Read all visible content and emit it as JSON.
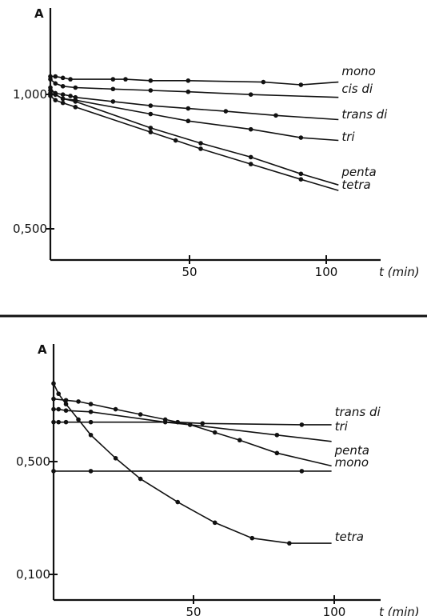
{
  "chart_data": [
    {
      "type": "line",
      "ylabel": "A",
      "xlabel": "t (min)",
      "x_ticks": [
        "50",
        "100"
      ],
      "y_ticks": [
        "1,000",
        "0,500"
      ],
      "xlim": [
        0,
        135
      ],
      "ylim": [
        0.4,
        1.22
      ],
      "series": [
        {
          "name": "mono",
          "x": [
            0,
            2,
            5,
            8,
            25,
            30,
            40,
            55,
            85,
            100,
            115
          ],
          "y": [
            1.06,
            1.06,
            1.055,
            1.05,
            1.05,
            1.05,
            1.045,
            1.045,
            1.04,
            1.03,
            1.04
          ]
        },
        {
          "name": "cis di",
          "x": [
            0,
            2,
            5,
            10,
            25,
            40,
            55,
            80,
            115
          ],
          "y": [
            1.05,
            1.035,
            1.025,
            1.02,
            1.015,
            1.01,
            1.005,
            0.995,
            0.985
          ]
        },
        {
          "name": "trans di",
          "x": [
            0,
            2,
            5,
            8,
            10,
            25,
            40,
            55,
            70,
            90,
            115
          ],
          "y": [
            1.01,
            1.0,
            0.995,
            0.99,
            0.985,
            0.97,
            0.955,
            0.945,
            0.935,
            0.92,
            0.905
          ]
        },
        {
          "name": "tri",
          "x": [
            0,
            2,
            5,
            10,
            40,
            55,
            80,
            100,
            115
          ],
          "y": [
            1.0,
            0.995,
            0.98,
            0.975,
            0.925,
            0.9,
            0.87,
            0.84,
            0.83
          ]
        },
        {
          "name": "penta",
          "x": [
            0,
            2,
            5,
            10,
            40,
            60,
            80,
            100,
            115
          ],
          "y": [
            1.02,
            0.995,
            0.98,
            0.97,
            0.875,
            0.82,
            0.77,
            0.71,
            0.67
          ]
        },
        {
          "name": "tetra",
          "x": [
            0,
            2,
            5,
            10,
            40,
            50,
            60,
            80,
            100,
            115
          ],
          "y": [
            0.99,
            0.975,
            0.965,
            0.95,
            0.86,
            0.83,
            0.8,
            0.745,
            0.69,
            0.65
          ]
        }
      ]
    },
    {
      "type": "line",
      "ylabel": "A",
      "xlabel": "t (min)",
      "x_ticks": [
        "50",
        "100"
      ],
      "y_ticks": [
        "0,500",
        "0,100"
      ],
      "xlim": [
        0,
        135
      ],
      "ylim": [
        0.0,
        0.9
      ],
      "series": [
        {
          "name": "trans di",
          "x": [
            0,
            2,
            5,
            15,
            50,
            60,
            100,
            112
          ],
          "y": [
            0.69,
            0.69,
            0.69,
            0.69,
            0.69,
            0.685,
            0.68,
            0.68
          ]
        },
        {
          "name": "tri",
          "x": [
            0,
            2,
            5,
            15,
            45,
            55,
            90,
            112
          ],
          "y": [
            0.74,
            0.74,
            0.735,
            0.73,
            0.69,
            0.68,
            0.64,
            0.615
          ]
        },
        {
          "name": "penta",
          "x": [
            0,
            5,
            10,
            15,
            25,
            35,
            45,
            55,
            65,
            75,
            90,
            112
          ],
          "y": [
            0.78,
            0.775,
            0.77,
            0.76,
            0.74,
            0.72,
            0.7,
            0.68,
            0.65,
            0.62,
            0.57,
            0.52
          ]
        },
        {
          "name": "mono",
          "x": [
            0,
            15,
            100,
            112
          ],
          "y": [
            0.5,
            0.5,
            0.5,
            0.5
          ]
        },
        {
          "name": "tetra",
          "x": [
            0,
            2,
            5,
            10,
            15,
            25,
            35,
            50,
            65,
            80,
            95,
            112
          ],
          "y": [
            0.84,
            0.8,
            0.76,
            0.7,
            0.64,
            0.55,
            0.47,
            0.38,
            0.3,
            0.24,
            0.22,
            0.22
          ]
        }
      ]
    }
  ]
}
